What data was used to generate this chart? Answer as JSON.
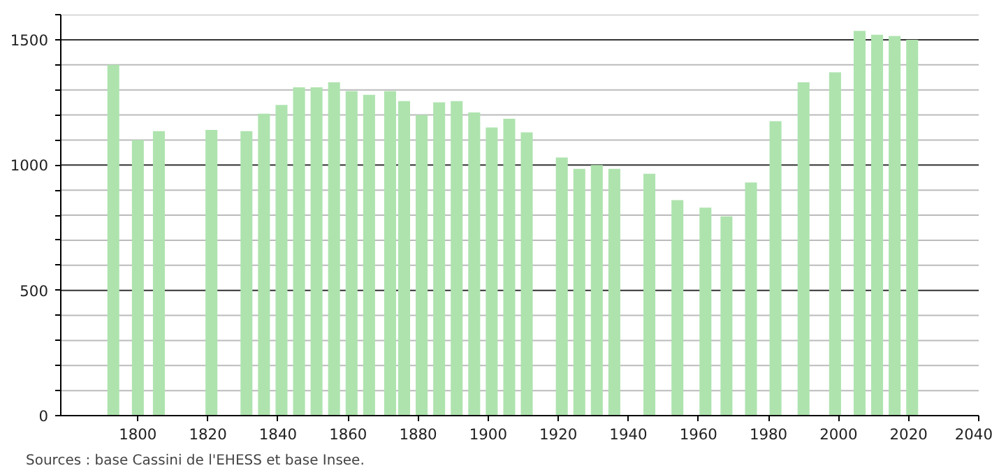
{
  "chart_data": {
    "type": "bar",
    "x": [
      1793,
      1800,
      1806,
      1821,
      1831,
      1836,
      1841,
      1846,
      1851,
      1856,
      1861,
      1866,
      1872,
      1876,
      1881,
      1886,
      1891,
      1896,
      1901,
      1906,
      1911,
      1921,
      1926,
      1931,
      1936,
      1946,
      1954,
      1962,
      1968,
      1975,
      1982,
      1990,
      1999,
      2006,
      2011,
      2016,
      2021
    ],
    "values": [
      1400,
      1100,
      1135,
      1140,
      1135,
      1205,
      1240,
      1310,
      1310,
      1330,
      1295,
      1280,
      1295,
      1255,
      1200,
      1250,
      1255,
      1210,
      1150,
      1185,
      1130,
      1030,
      985,
      1000,
      985,
      965,
      860,
      830,
      795,
      930,
      1175,
      1330,
      1370,
      1535,
      1520,
      1515,
      1500
    ],
    "color": "#aee3ae",
    "xlim": [
      1778,
      2040
    ],
    "xticks": [
      1800,
      1820,
      1840,
      1860,
      1880,
      1900,
      1920,
      1940,
      1960,
      1980,
      2000,
      2020,
      2040
    ],
    "ylim": [
      0,
      1600
    ],
    "yticks": [
      0,
      {
        "value": 100,
        "label": null
      },
      {
        "value": 200,
        "label": null
      },
      {
        "value": 300,
        "label": null
      },
      {
        "value": 400,
        "label": null
      },
      500,
      {
        "value": 600,
        "label": null
      },
      {
        "value": 700,
        "label": null
      },
      {
        "value": 800,
        "label": null
      },
      {
        "value": 900,
        "label": null
      },
      1000,
      {
        "value": 1100,
        "label": null
      },
      {
        "value": 1200,
        "label": null
      },
      {
        "value": 1300,
        "label": null
      },
      {
        "value": 1400,
        "label": null
      },
      1500,
      {
        "value": 1600,
        "label": null
      }
    ],
    "grid": "y",
    "annotations": [
      "Sources : base Cassini de l'EHESS et base Insee."
    ]
  }
}
